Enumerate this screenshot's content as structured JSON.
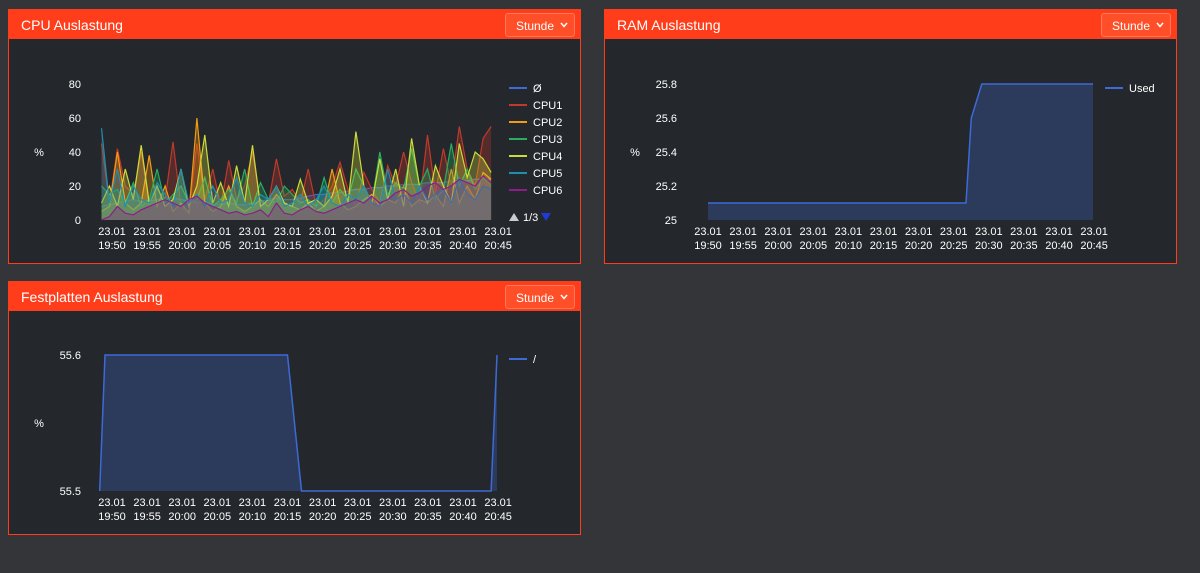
{
  "panels": [
    {
      "title": "CPU Auslastung",
      "range": "Stunde",
      "icon": "chevron-down-icon",
      "chart_data": {
        "type": "area",
        "ylabel": "%",
        "ylim": [
          0,
          80
        ],
        "y_ticks": [
          "0",
          "20",
          "40",
          "60",
          "80"
        ],
        "x_ticks": [
          [
            "23.01",
            "19:50"
          ],
          [
            "23.01",
            "19:55"
          ],
          [
            "23.01",
            "20:00"
          ],
          [
            "23.01",
            "20:05"
          ],
          [
            "23.01",
            "20:10"
          ],
          [
            "23.01",
            "20:15"
          ],
          [
            "23.01",
            "20:20"
          ],
          [
            "23.01",
            "20:25"
          ],
          [
            "23.01",
            "20:30"
          ],
          [
            "23.01",
            "20:35"
          ],
          [
            "23.01",
            "20:40"
          ],
          [
            "23.01",
            "20:45"
          ]
        ],
        "legend_page": "1/3",
        "legend_position": "right",
        "series": [
          {
            "name": "Ø",
            "color": "#3c6ad6",
            "values": [
              8,
              9,
              10,
              11,
              12,
              11,
              11,
              12,
              12,
              13,
              12,
              11,
              10,
              11,
              9,
              9,
              10,
              9,
              9,
              10,
              11,
              12,
              13,
              12,
              12,
              13,
              14,
              15,
              15,
              16,
              16,
              17,
              18,
              18,
              19,
              19,
              20,
              20,
              21,
              21,
              21,
              22,
              22,
              22,
              23,
              23,
              23,
              24,
              24,
              24
            ]
          },
          {
            "name": "CPU1",
            "color": "#c0392b",
            "values": [
              45,
              10,
              42,
              20,
              15,
              40,
              10,
              18,
              12,
              46,
              8,
              5,
              45,
              12,
              30,
              8,
              35,
              12,
              20,
              40,
              10,
              10,
              36,
              14,
              18,
              10,
              30,
              8,
              12,
              20,
              34,
              18,
              8,
              28,
              18,
              10,
              32,
              20,
              40,
              22,
              10,
              50,
              16,
              42,
              20,
              55,
              30,
              20,
              48,
              55
            ]
          },
          {
            "name": "CPU2",
            "color": "#f39c12",
            "values": [
              5,
              8,
              40,
              10,
              6,
              10,
              38,
              8,
              20,
              5,
              10,
              4,
              60,
              10,
              5,
              8,
              20,
              8,
              5,
              8,
              12,
              8,
              15,
              10,
              8,
              6,
              10,
              5,
              8,
              30,
              10,
              6,
              8,
              12,
              15,
              8,
              12,
              10,
              20,
              8,
              12,
              10,
              15,
              8,
              30,
              10,
              20,
              12,
              28,
              24
            ]
          },
          {
            "name": "CPU3",
            "color": "#27ae60",
            "values": [
              20,
              15,
              18,
              10,
              22,
              8,
              12,
              30,
              10,
              15,
              20,
              10,
              12,
              25,
              8,
              12,
              18,
              10,
              30,
              8,
              22,
              12,
              10,
              20,
              15,
              10,
              12,
              8,
              25,
              10,
              18,
              12,
              30,
              20,
              10,
              40,
              15,
              22,
              18,
              42,
              20,
              30,
              12,
              18,
              45,
              20,
              30,
              18,
              25,
              20
            ]
          },
          {
            "name": "CPU4",
            "color": "#cddc39",
            "values": [
              10,
              20,
              8,
              30,
              12,
              44,
              10,
              20,
              8,
              12,
              30,
              8,
              20,
              50,
              10,
              22,
              8,
              32,
              10,
              44,
              8,
              12,
              20,
              10,
              8,
              24,
              10,
              12,
              8,
              14,
              30,
              10,
              52,
              20,
              10,
              36,
              12,
              30,
              8,
              48,
              20,
              10,
              32,
              20,
              10,
              45,
              25,
              40,
              36,
              28
            ]
          },
          {
            "name": "CPU5",
            "color": "#1f8fb0",
            "values": [
              54,
              10,
              30,
              8,
              20,
              12,
              10,
              22,
              15,
              8,
              30,
              10,
              15,
              8,
              20,
              10,
              12,
              25,
              10,
              8,
              15,
              12,
              20,
              8,
              10,
              15,
              8,
              12,
              20,
              10,
              8,
              15,
              12,
              20,
              10,
              8,
              30,
              12,
              15,
              10,
              20,
              12,
              15,
              18,
              10,
              25,
              15,
              12,
              20,
              18
            ]
          },
          {
            "name": "CPU6",
            "color": "#8e1c8c",
            "values": [
              0,
              2,
              8,
              4,
              3,
              6,
              8,
              10,
              12,
              10,
              8,
              12,
              14,
              10,
              8,
              6,
              4,
              5,
              3,
              4,
              6,
              2,
              10,
              4,
              3,
              6,
              8,
              5,
              4,
              6,
              8,
              10,
              12,
              10,
              14,
              10,
              12,
              16,
              18,
              14,
              16,
              20,
              22,
              18,
              20,
              24,
              22,
              20,
              26,
              22
            ]
          }
        ]
      }
    },
    {
      "title": "RAM Auslastung",
      "range": "Stunde",
      "icon": "chevron-down-icon",
      "chart_data": {
        "type": "area",
        "ylabel": "%",
        "ylim": [
          25,
          25.8
        ],
        "y_ticks": [
          "25",
          "25.2",
          "25.4",
          "25.6",
          "25.8"
        ],
        "x_ticks": [
          [
            "23.01",
            "19:50"
          ],
          [
            "23.01",
            "19:55"
          ],
          [
            "23.01",
            "20:00"
          ],
          [
            "23.01",
            "20:05"
          ],
          [
            "23.01",
            "20:10"
          ],
          [
            "23.01",
            "20:15"
          ],
          [
            "23.01",
            "20:20"
          ],
          [
            "23.01",
            "20:25"
          ],
          [
            "23.01",
            "20:30"
          ],
          [
            "23.01",
            "20:35"
          ],
          [
            "23.01",
            "20:40"
          ],
          [
            "23.01",
            "20:45"
          ]
        ],
        "legend_position": "right",
        "series": [
          {
            "name": "Used",
            "color": "#3c6ad6",
            "x": [
              0,
              7.35,
              7.5,
              7.8,
              11.1
            ],
            "values": [
              25.1,
              25.1,
              25.6,
              25.8,
              25.8
            ]
          }
        ]
      }
    },
    {
      "title": "Festplatten Auslastung",
      "range": "Stunde",
      "icon": "chevron-down-icon",
      "chart_data": {
        "type": "area",
        "ylabel": "%",
        "ylim": [
          55.5,
          55.6
        ],
        "y_ticks": [
          "55.5",
          "55.6"
        ],
        "x_ticks": [
          [
            "23.01",
            "19:50"
          ],
          [
            "23.01",
            "19:55"
          ],
          [
            "23.01",
            "20:00"
          ],
          [
            "23.01",
            "20:05"
          ],
          [
            "23.01",
            "20:10"
          ],
          [
            "23.01",
            "20:15"
          ],
          [
            "23.01",
            "20:20"
          ],
          [
            "23.01",
            "20:25"
          ],
          [
            "23.01",
            "20:30"
          ],
          [
            "23.01",
            "20:35"
          ],
          [
            "23.01",
            "20:40"
          ],
          [
            "23.01",
            "20:45"
          ]
        ],
        "legend_position": "right",
        "series": [
          {
            "name": "/",
            "color": "#3c6ad6",
            "x": [
              -0.35,
              -0.2,
              5.0,
              5.4,
              10.8,
              11.2,
              12.0
            ],
            "values": [
              55.5,
              55.6,
              55.6,
              55.5,
              55.5,
              55.6,
              55.6
            ]
          }
        ]
      }
    }
  ]
}
